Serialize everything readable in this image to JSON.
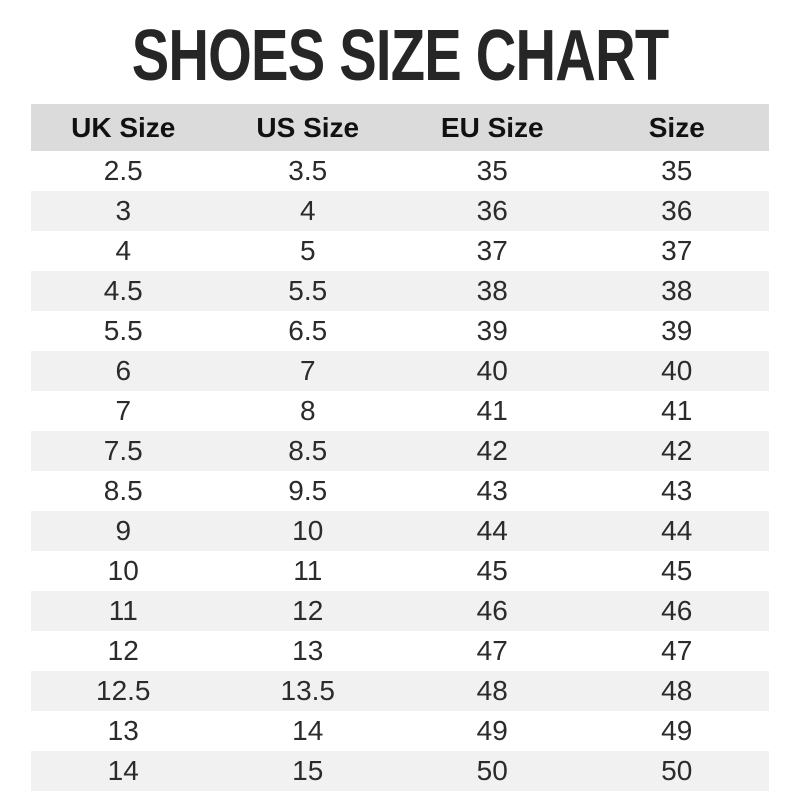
{
  "title": "SHOES SIZE CHART",
  "chart_data": {
    "type": "table",
    "title": "SHOES SIZE CHART",
    "columns": [
      "UK Size",
      "US Size",
      "EU Size",
      "Size"
    ],
    "rows": [
      [
        "2.5",
        "3.5",
        "35",
        "35"
      ],
      [
        "3",
        "4",
        "36",
        "36"
      ],
      [
        "4",
        "5",
        "37",
        "37"
      ],
      [
        "4.5",
        "5.5",
        "38",
        "38"
      ],
      [
        "5.5",
        "6.5",
        "39",
        "39"
      ],
      [
        "6",
        "7",
        "40",
        "40"
      ],
      [
        "7",
        "8",
        "41",
        "41"
      ],
      [
        "7.5",
        "8.5",
        "42",
        "42"
      ],
      [
        "8.5",
        "9.5",
        "43",
        "43"
      ],
      [
        "9",
        "10",
        "44",
        "44"
      ],
      [
        "10",
        "11",
        "45",
        "45"
      ],
      [
        "11",
        "12",
        "46",
        "46"
      ],
      [
        "12",
        "13",
        "47",
        "47"
      ],
      [
        "12.5",
        "13.5",
        "48",
        "48"
      ],
      [
        "13",
        "14",
        "49",
        "49"
      ],
      [
        "14",
        "15",
        "50",
        "50"
      ]
    ]
  },
  "colors": {
    "header_bg": "#dbdbdb",
    "stripe_bg": "#f1f1f1",
    "title_text": "#262626",
    "cell_text": "#2b2b2b"
  }
}
